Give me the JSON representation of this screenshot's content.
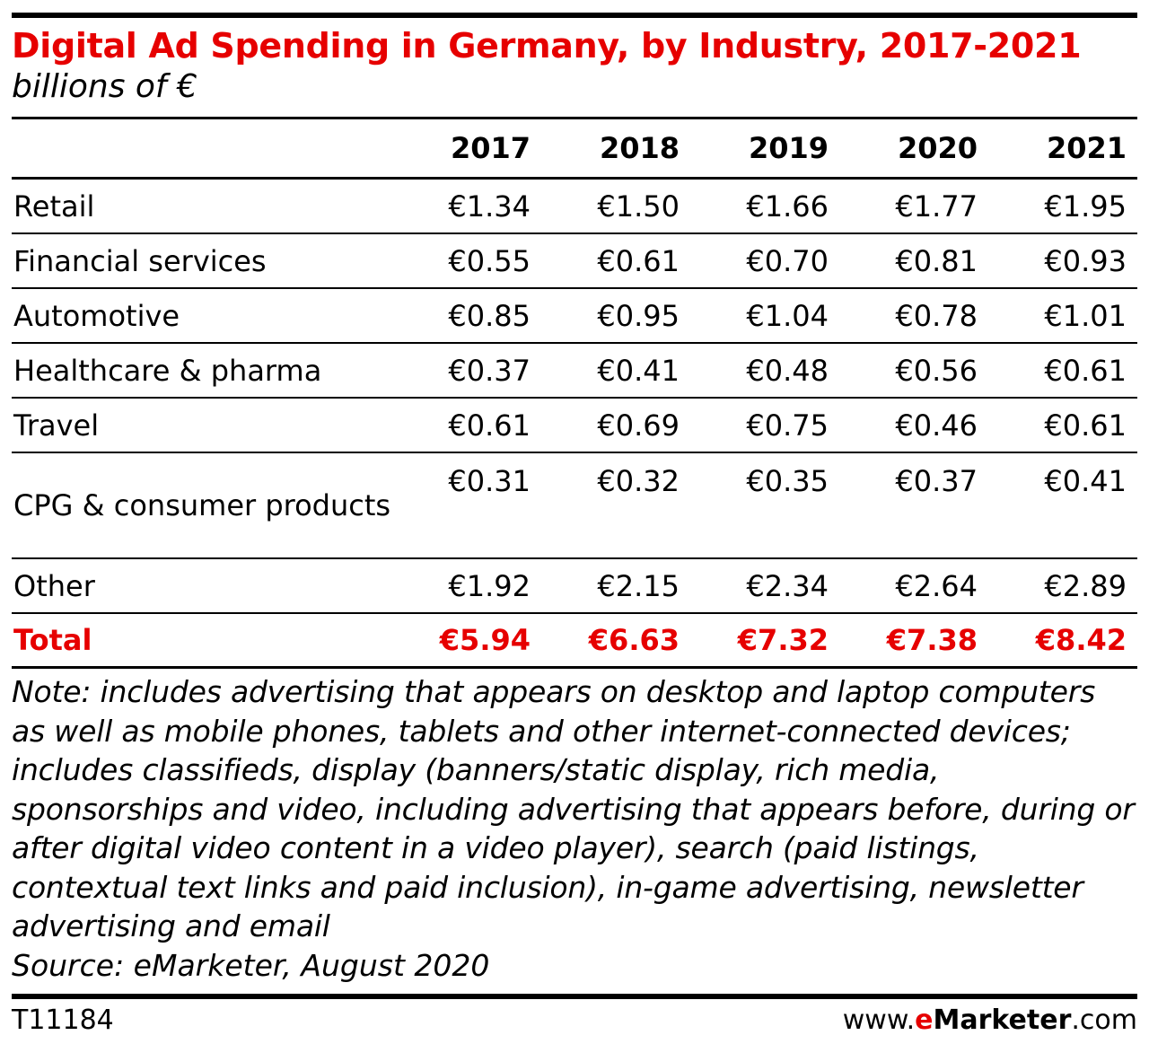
{
  "header": {
    "title": "Digital Ad Spending in Germany, by Industry, 2017-2021",
    "subtitle": "billions of €"
  },
  "chart_data": {
    "type": "table",
    "title": "Digital Ad Spending in Germany, by Industry, 2017-2021",
    "unit": "billions of €",
    "columns": [
      "2017",
      "2018",
      "2019",
      "2020",
      "2021"
    ],
    "rows": [
      {
        "label": "Retail",
        "values": [
          "€1.34",
          "€1.50",
          "€1.66",
          "€1.77",
          "€1.95"
        ]
      },
      {
        "label": "Financial services",
        "values": [
          "€0.55",
          "€0.61",
          "€0.70",
          "€0.81",
          "€0.93"
        ]
      },
      {
        "label": "Automotive",
        "values": [
          "€0.85",
          "€0.95",
          "€1.04",
          "€0.78",
          "€1.01"
        ]
      },
      {
        "label": "Healthcare & pharma",
        "values": [
          "€0.37",
          "€0.41",
          "€0.48",
          "€0.56",
          "€0.61"
        ]
      },
      {
        "label": "Travel",
        "values": [
          "€0.61",
          "€0.69",
          "€0.75",
          "€0.46",
          "€0.61"
        ]
      },
      {
        "label": "CPG & consumer products",
        "values": [
          "€0.31",
          "€0.32",
          "€0.35",
          "€0.37",
          "€0.41"
        ]
      },
      {
        "label": "Other",
        "values": [
          "€1.92",
          "€2.15",
          "€2.34",
          "€2.64",
          "€2.89"
        ]
      }
    ],
    "total": {
      "label": "Total",
      "values": [
        "€5.94",
        "€6.63",
        "€7.32",
        "€7.38",
        "€8.42"
      ]
    }
  },
  "note": "Note: includes advertising that appears on desktop and laptop computers as well as mobile phones, tablets and other internet-connected devices; includes classifieds, display (banners/static display, rich media, sponsorships and video, including advertising that appears before, during or after digital video content in a video player), search (paid listings, contextual text links and paid inclusion), in-game advertising, newsletter advertising and email",
  "source": "Source: eMarketer, August 2020",
  "footer": {
    "code": "T11184",
    "site_prefix": "www.",
    "site_e": "e",
    "site_brand": "Marketer",
    "site_suffix": ".com"
  },
  "colors": {
    "accent": "#e60000",
    "text": "#000000"
  }
}
